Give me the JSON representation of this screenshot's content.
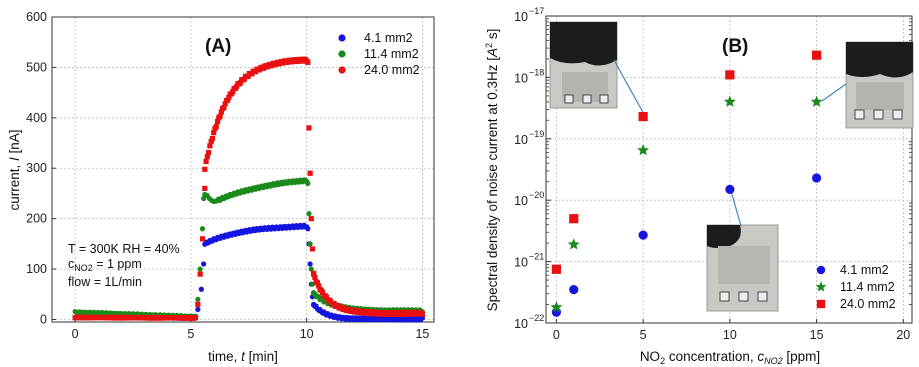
{
  "chart_data": [
    {
      "type": "scatter",
      "panel_label": "(A)",
      "xlabel_prefix": "time, ",
      "xlabel_var": "t",
      "xlabel_unit": " [min]",
      "ylabel_prefix": "current, ",
      "ylabel_var": "I",
      "ylabel_unit": "  [nA]",
      "xlim": [
        -1,
        15.5
      ],
      "ylim": [
        -5,
        600
      ],
      "xticks": [
        0,
        5,
        10,
        15
      ],
      "yticks": [
        0,
        100,
        200,
        300,
        400,
        500,
        600
      ],
      "grid": true,
      "legend": "top-right",
      "annotations": [
        "T = 300K  RH = 40%",
        "c",
        "NO2",
        " = 1 ppm",
        "flow = 1L/min"
      ],
      "series": [
        {
          "name": "4.1 mm2",
          "color": "#1515e0",
          "marker": "circle",
          "segments": [
            {
              "kind": "flat",
              "x0": 0,
              "x1": 5.2,
              "y0": 5,
              "y1": 3
            },
            {
              "kind": "points",
              "x": [
                5.3,
                5.45,
                5.55
              ],
              "y": [
                20,
                60,
                110
              ]
            },
            {
              "kind": "rise",
              "x0": 5.6,
              "x1": 10,
              "y0": 150,
              "y1": 185,
              "tau": 1.6
            },
            {
              "kind": "points",
              "x": [
                10.05,
                10.1,
                10.15,
                10.2,
                10.25,
                10.3
              ],
              "y": [
                180,
                150,
                110,
                70,
                45,
                30
              ]
            },
            {
              "kind": "decay",
              "x0": 10.3,
              "x1": 15,
              "y0": 30,
              "y1": 1,
              "tau": 0.5
            }
          ]
        },
        {
          "name": "11.4 mm2",
          "color": "#1a8a1a",
          "marker": "circle",
          "segments": [
            {
              "kind": "flat",
              "x0": 0,
              "x1": 5.2,
              "y0": 15,
              "y1": 6
            },
            {
              "kind": "points",
              "x": [
                5.3,
                5.4,
                5.5,
                5.55
              ],
              "y": [
                40,
                100,
                180,
                240
              ]
            },
            {
              "kind": "points",
              "x": [
                5.6,
                5.7,
                5.8,
                5.9,
                6.0,
                6.1,
                6.2
              ],
              "y": [
                248,
                246,
                240,
                236,
                234,
                235,
                237
              ]
            },
            {
              "kind": "rise",
              "x0": 6.2,
              "x1": 10,
              "y0": 237,
              "y1": 276,
              "tau": 2.5
            },
            {
              "kind": "points",
              "x": [
                10.05,
                10.1,
                10.15,
                10.2,
                10.25,
                10.3
              ],
              "y": [
                270,
                210,
                150,
                100,
                70,
                52
              ]
            },
            {
              "kind": "decay",
              "x0": 10.3,
              "x1": 15,
              "y0": 52,
              "y1": 17,
              "tau": 0.8
            }
          ]
        },
        {
          "name": "24.0 mm2",
          "color": "#e81010",
          "marker": "square",
          "segments": [
            {
              "kind": "flat",
              "x0": 0,
              "x1": 5.2,
              "y0": 4,
              "y1": 3
            },
            {
              "kind": "points",
              "x": [
                5.3,
                5.4,
                5.5,
                5.6
              ],
              "y": [
                30,
                90,
                160,
                260
              ]
            },
            {
              "kind": "rise",
              "x0": 5.6,
              "x1": 10,
              "y0": 300,
              "y1": 515,
              "tau": 1.0
            },
            {
              "kind": "points",
              "x": [
                10.05,
                10.1,
                10.15,
                10.2,
                10.25,
                10.3
              ],
              "y": [
                510,
                380,
                290,
                200,
                140,
                90
              ]
            },
            {
              "kind": "decay",
              "x0": 10.3,
              "x1": 15,
              "y0": 90,
              "y1": 12,
              "tau": 0.6
            }
          ]
        }
      ]
    },
    {
      "type": "scatter",
      "panel_label": "(B)",
      "xlabel_prefix": "NO",
      "xlabel_sub": "2",
      "xlabel_mid": " concentration, ",
      "xlabel_var": "c",
      "xlabel_var_sub": "NO2",
      "xlabel_unit": " [ppm]",
      "ylabel_main": "Spectral density of noise current at 0.3Hz [",
      "ylabel_unitA": "A",
      "ylabel_unitExp": "2",
      "ylabel_unitTail": " s]",
      "xlim": [
        -0.6,
        20.5
      ],
      "ylim_log": [
        -22,
        -17
      ],
      "xticks": [
        0,
        5,
        10,
        15,
        20
      ],
      "yticks_exp": [
        -22,
        -21,
        -20,
        -19,
        -18,
        -17
      ],
      "ytick_base": "10",
      "grid": true,
      "legend": "bottom-right",
      "yscale": "log",
      "series": [
        {
          "name": "4.1 mm2",
          "color": "#1515e0",
          "marker": "circle",
          "x": [
            0,
            1,
            5,
            10,
            15
          ],
          "y": [
            1.5e-22,
            3.5e-22,
            2.7e-21,
            1.5e-20,
            2.3e-20
          ]
        },
        {
          "name": "11.4 mm2",
          "color": "#1a8a1a",
          "marker": "star",
          "x": [
            0,
            1,
            5,
            10,
            15
          ],
          "y": [
            1.8e-22,
            1.9e-21,
            6.5e-20,
            4e-19,
            4e-19
          ]
        },
        {
          "name": "24.0 mm2",
          "color": "#e81010",
          "marker": "square",
          "x": [
            0,
            1,
            5,
            10,
            15
          ],
          "y": [
            7.5e-22,
            5e-21,
            2.3e-19,
            1.1e-18,
            2.3e-18
          ]
        }
      ]
    }
  ]
}
